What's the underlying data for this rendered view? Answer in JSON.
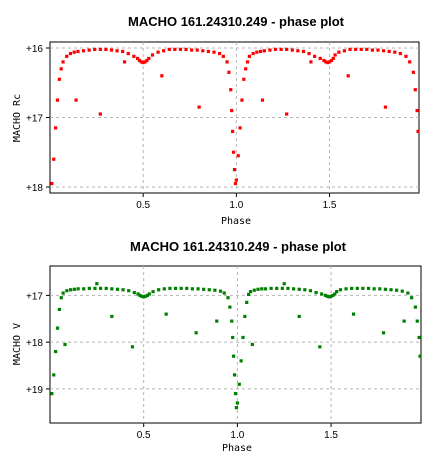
{
  "chart_data": [
    {
      "type": "scatter",
      "title": "MACHO 161.24310.249 - phase plot",
      "xlabel": "Phase",
      "ylabel": "MACHO Rc",
      "xlim": [
        0.0,
        1.98
      ],
      "ylim": [
        16.0,
        18.0
      ],
      "y_inverted": true,
      "xticks": [
        0.5,
        1.0,
        1.5
      ],
      "xtick_labels": [
        "0.5",
        "1.0",
        "1.5"
      ],
      "yticks": [
        16,
        17,
        18
      ],
      "ytick_labels": [
        "+16",
        "+17",
        "+18"
      ],
      "grid": true,
      "color": "#ff0000",
      "series": [
        {
          "x": [
            0.01,
            0.02,
            0.03,
            0.04,
            0.05,
            0.06,
            0.07,
            0.09,
            0.11,
            0.13,
            0.15,
            0.18,
            0.21,
            0.24,
            0.27,
            0.3,
            0.33,
            0.36,
            0.39,
            0.42,
            0.45,
            0.47,
            0.48,
            0.49,
            0.5,
            0.51,
            0.52,
            0.53,
            0.55,
            0.58,
            0.61,
            0.64,
            0.67,
            0.7,
            0.73,
            0.76,
            0.79,
            0.82,
            0.85,
            0.88,
            0.91,
            0.93,
            0.95,
            0.96,
            0.97,
            0.975,
            0.98,
            0.985,
            0.99,
            0.995,
            1.0,
            1.01,
            1.02,
            1.03,
            1.04,
            1.05,
            1.06,
            1.07,
            1.09,
            1.11,
            1.13,
            1.15,
            1.18,
            1.21,
            1.24,
            1.27,
            1.3,
            1.33,
            1.36,
            1.39,
            1.42,
            1.45,
            1.47,
            1.48,
            1.49,
            1.5,
            1.51,
            1.52,
            1.53,
            1.55,
            1.58,
            1.61,
            1.64,
            1.67,
            1.7,
            1.73,
            1.76,
            1.79,
            1.82,
            1.85,
            1.88,
            1.91,
            1.93,
            1.95,
            1.96,
            1.97,
            1.975,
            0.14,
            0.27,
            0.4,
            0.6,
            0.8,
            1.14,
            1.27,
            1.4,
            1.6,
            1.8
          ],
          "y": [
            17.95,
            17.6,
            17.15,
            16.75,
            16.45,
            16.3,
            16.2,
            16.12,
            16.08,
            16.06,
            16.05,
            16.04,
            16.03,
            16.02,
            16.02,
            16.02,
            16.03,
            16.04,
            16.05,
            16.08,
            16.12,
            16.15,
            16.18,
            16.2,
            16.21,
            16.2,
            16.18,
            16.15,
            16.1,
            16.06,
            16.04,
            16.02,
            16.02,
            16.02,
            16.02,
            16.03,
            16.03,
            16.04,
            16.05,
            16.06,
            16.08,
            16.12,
            16.2,
            16.35,
            16.6,
            16.9,
            17.2,
            17.5,
            17.75,
            17.95,
            17.9,
            17.55,
            17.15,
            16.75,
            16.45,
            16.3,
            16.2,
            16.12,
            16.08,
            16.06,
            16.05,
            16.04,
            16.03,
            16.02,
            16.02,
            16.02,
            16.03,
            16.04,
            16.05,
            16.08,
            16.12,
            16.15,
            16.18,
            16.2,
            16.21,
            16.2,
            16.18,
            16.15,
            16.1,
            16.06,
            16.04,
            16.02,
            16.02,
            16.02,
            16.02,
            16.03,
            16.03,
            16.04,
            16.05,
            16.06,
            16.08,
            16.12,
            16.2,
            16.35,
            16.6,
            16.9,
            17.2,
            16.75,
            16.95,
            16.2,
            16.4,
            16.85,
            16.75,
            16.95,
            16.2,
            16.4,
            16.85
          ]
        }
      ]
    },
    {
      "type": "scatter",
      "title": "MACHO 161.24310.249 - phase plot",
      "xlabel": "Phase",
      "ylabel": "MACHO V",
      "xlim": [
        0.0,
        1.98
      ],
      "ylim": [
        16.5,
        19.6
      ],
      "y_inverted": true,
      "xticks": [
        0.5,
        1.0,
        1.5
      ],
      "xtick_labels": [
        "0.5",
        "1.0",
        "1.5"
      ],
      "yticks": [
        17,
        18,
        19
      ],
      "ytick_labels": [
        "+17",
        "+18",
        "+19"
      ],
      "grid": true,
      "color": "#008000",
      "series": [
        {
          "x": [
            0.01,
            0.02,
            0.03,
            0.04,
            0.05,
            0.06,
            0.07,
            0.09,
            0.11,
            0.13,
            0.15,
            0.18,
            0.21,
            0.24,
            0.27,
            0.3,
            0.33,
            0.36,
            0.39,
            0.42,
            0.45,
            0.47,
            0.48,
            0.49,
            0.5,
            0.51,
            0.52,
            0.53,
            0.55,
            0.58,
            0.61,
            0.64,
            0.67,
            0.7,
            0.73,
            0.76,
            0.79,
            0.82,
            0.85,
            0.88,
            0.91,
            0.93,
            0.95,
            0.96,
            0.97,
            0.975,
            0.98,
            0.985,
            0.99,
            0.995,
            1.0,
            1.01,
            1.02,
            1.03,
            1.04,
            1.05,
            1.06,
            1.07,
            1.09,
            1.11,
            1.13,
            1.15,
            1.18,
            1.21,
            1.24,
            1.27,
            1.3,
            1.33,
            1.36,
            1.39,
            1.42,
            1.45,
            1.47,
            1.48,
            1.49,
            1.5,
            1.51,
            1.52,
            1.53,
            1.55,
            1.58,
            1.61,
            1.64,
            1.67,
            1.7,
            1.73,
            1.76,
            1.79,
            1.82,
            1.85,
            1.88,
            1.91,
            1.93,
            1.95,
            1.96,
            1.97,
            1.975,
            0.08,
            0.25,
            0.33,
            0.44,
            0.62,
            0.78,
            0.89,
            1.08,
            1.25,
            1.33,
            1.44,
            1.62,
            1.78,
            1.89
          ],
          "y": [
            19.1,
            18.7,
            18.2,
            17.7,
            17.3,
            17.05,
            16.95,
            16.9,
            16.88,
            16.87,
            16.86,
            16.86,
            16.85,
            16.85,
            16.85,
            16.85,
            16.86,
            16.87,
            16.88,
            16.9,
            16.94,
            16.97,
            17.0,
            17.02,
            17.03,
            17.02,
            17.0,
            16.97,
            16.92,
            16.88,
            16.86,
            16.85,
            16.85,
            16.85,
            16.85,
            16.86,
            16.86,
            16.87,
            16.88,
            16.89,
            16.91,
            16.95,
            17.05,
            17.25,
            17.55,
            17.9,
            18.3,
            18.7,
            19.1,
            19.4,
            19.3,
            18.9,
            18.4,
            17.9,
            17.45,
            17.15,
            16.98,
            16.92,
            16.89,
            16.87,
            16.86,
            16.86,
            16.85,
            16.85,
            16.85,
            16.85,
            16.86,
            16.87,
            16.88,
            16.9,
            16.94,
            16.97,
            17.0,
            17.02,
            17.03,
            17.02,
            17.0,
            16.97,
            16.92,
            16.88,
            16.86,
            16.85,
            16.85,
            16.85,
            16.85,
            16.86,
            16.86,
            16.87,
            16.88,
            16.89,
            16.91,
            16.95,
            17.05,
            17.25,
            17.55,
            17.9,
            18.3,
            18.05,
            16.75,
            17.45,
            18.1,
            17.4,
            17.8,
            17.55,
            18.05,
            16.75,
            17.45,
            18.1,
            17.4,
            17.8,
            17.55
          ]
        }
      ]
    }
  ]
}
